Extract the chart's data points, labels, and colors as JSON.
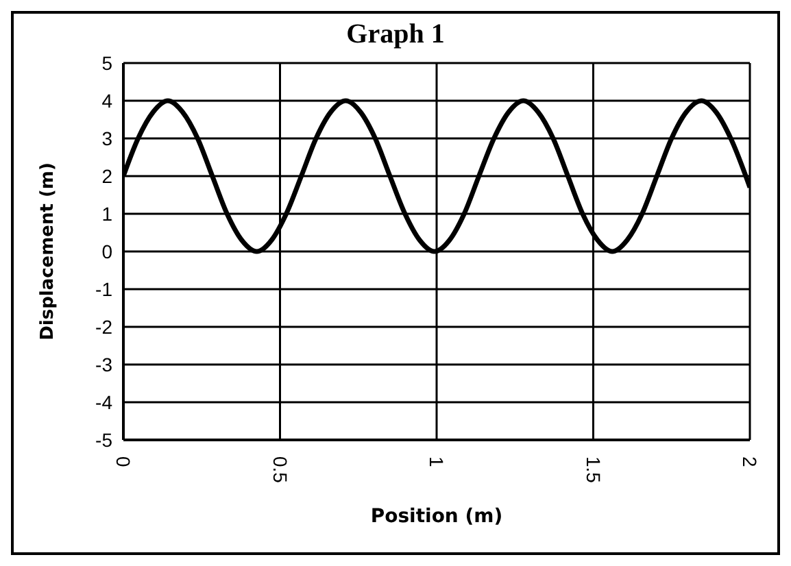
{
  "chart_data": {
    "type": "line",
    "title": "Graph 1",
    "xlabel": "Position (m)",
    "ylabel": "Displacement (m)",
    "x": [
      0,
      0.047,
      0.095,
      0.142,
      0.189,
      0.237,
      0.284,
      0.331,
      0.378,
      0.426,
      0.473,
      0.52,
      0.568,
      0.615,
      0.662,
      0.71,
      0.757,
      0.804,
      0.851,
      0.899,
      0.946,
      0.993,
      1.041,
      1.088,
      1.135,
      1.183,
      1.23,
      1.277,
      1.324,
      1.372,
      1.419,
      1.466,
      1.514,
      1.561,
      1.608,
      1.656,
      1.703,
      1.75,
      1.797,
      1.845,
      1.892,
      1.939,
      1.987,
      2
    ],
    "series": [
      {
        "color": "#000000",
        "values": [
          2,
          3,
          3.7,
          4,
          3.7,
          3,
          2,
          1,
          0.3,
          0,
          0.3,
          1,
          2,
          3,
          3.7,
          4,
          3.7,
          3,
          2,
          1,
          0.3,
          0,
          0.3,
          1,
          2,
          3,
          3.7,
          4,
          3.7,
          3,
          2,
          1,
          0.3,
          0,
          0.3,
          1,
          2,
          3,
          3.7,
          4,
          3.7,
          3,
          2,
          1.7
        ]
      }
    ],
    "xlim": [
      0,
      2
    ],
    "xticks": [
      0,
      0.5,
      1,
      1.5,
      2
    ],
    "ylim": [
      -5,
      5
    ],
    "yticks": [
      -5,
      -4,
      -3,
      -2,
      -1,
      0,
      1,
      2,
      3,
      4,
      5
    ],
    "grid": true,
    "marker": "none",
    "line_style": "solid"
  }
}
